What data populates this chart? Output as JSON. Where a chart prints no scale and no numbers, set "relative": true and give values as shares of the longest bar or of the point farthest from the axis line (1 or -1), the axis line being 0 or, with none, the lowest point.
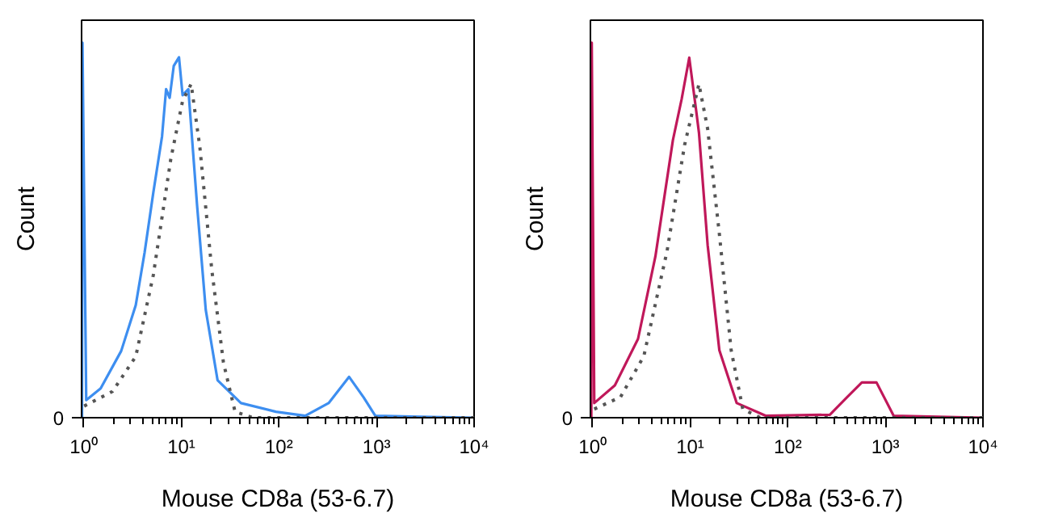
{
  "chart_data": [
    {
      "type": "line",
      "xlabel": "Mouse CD8a (53-6.7)",
      "ylabel": "Count",
      "log": "x",
      "relative": true,
      "tick_labels": "x",
      "grid": false,
      "xlim": [
        0.95,
        10000
      ],
      "xticks": [
        {
          "value": 1,
          "label": "10⁰"
        },
        {
          "value": 10,
          "label": "10¹"
        },
        {
          "value": 100,
          "label": "10²"
        },
        {
          "value": 1000,
          "label": "10³"
        },
        {
          "value": 10000,
          "label": "10⁴"
        }
      ],
      "annotations": [
        "0"
      ],
      "series": [
        {
          "color": "#3d8ef0",
          "line_style": "solid",
          "x": [
            0.96,
            0.97,
            1.06,
            1.49,
            2.42,
            3.41,
            4.2,
            5.16,
            6.34,
            6.98,
            7.59,
            8.36,
            9.46,
            10.3,
            11.8,
            14.5,
            17.8,
            23.5,
            40.8,
            93,
            186,
            323,
            523,
            738,
            972,
            10000
          ],
          "values": [
            0,
            1,
            0.047,
            0.078,
            0.178,
            0.3,
            0.44,
            0.6,
            0.75,
            0.876,
            0.853,
            0.938,
            0.961,
            0.86,
            0.876,
            0.566,
            0.287,
            0.1,
            0.039,
            0.016,
            0.005,
            0.039,
            0.109,
            0.054,
            0.005,
            0
          ]
        },
        {
          "color": "#555555",
          "line_style": "dotted",
          "x": [
            1.01,
            1.97,
            3.41,
            5.16,
            7.8,
            10.3,
            12.6,
            15.5,
            20.5,
            27,
            35.5,
            53.9,
            10000
          ],
          "values": [
            0.031,
            0.07,
            0.163,
            0.38,
            0.69,
            0.845,
            0.89,
            0.72,
            0.395,
            0.147,
            0.016,
            0,
            0
          ]
        }
      ]
    },
    {
      "type": "line",
      "xlabel": "Mouse CD8a (53-6.7)",
      "ylabel": "Count",
      "log": "x",
      "relative": true,
      "tick_labels": "x",
      "grid": false,
      "xlim": [
        0.95,
        10000
      ],
      "xticks": [
        {
          "value": 1,
          "label": "10⁰"
        },
        {
          "value": 10,
          "label": "10¹"
        },
        {
          "value": 100,
          "label": "10²"
        },
        {
          "value": 1000,
          "label": "10³"
        },
        {
          "value": 10000,
          "label": "10⁴"
        }
      ],
      "annotations": [
        "0"
      ],
      "series": [
        {
          "color": "#c0185a",
          "line_style": "solid",
          "x": [
            0.97,
            0.98,
            1.04,
            1.69,
            2.92,
            4.4,
            6.65,
            8.18,
            9.78,
            11.5,
            12.3,
            15.1,
            19.9,
            30,
            59.8,
            270,
            407,
            574,
            811,
            1217,
            10000
          ],
          "values": [
            0,
            1,
            0.039,
            0.086,
            0.21,
            0.43,
            0.74,
            0.85,
            0.96,
            0.82,
            0.76,
            0.46,
            0.18,
            0.039,
            0.005,
            0.008,
            0.055,
            0.094,
            0.094,
            0.005,
            0
          ]
        },
        {
          "color": "#555555",
          "line_style": "dotted",
          "x": [
            1.04,
            1.93,
            3.35,
            5.8,
            8.76,
            12.3,
            15.1,
            19.9,
            26.3,
            34.6,
            52,
            10000
          ],
          "values": [
            0.023,
            0.055,
            0.164,
            0.445,
            0.727,
            0.89,
            0.77,
            0.49,
            0.18,
            0.023,
            0,
            0
          ]
        }
      ]
    }
  ]
}
